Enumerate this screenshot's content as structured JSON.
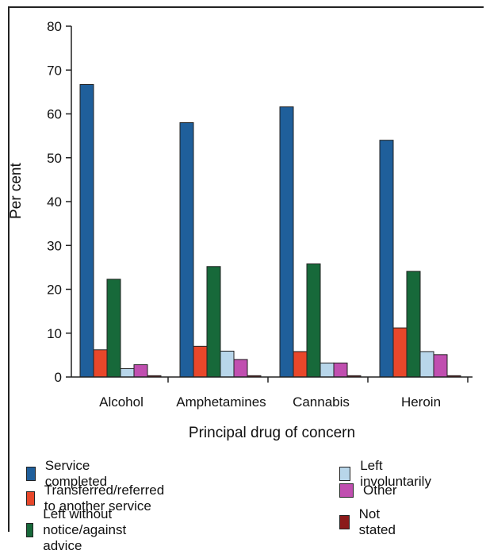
{
  "chart_data": {
    "type": "bar",
    "categories": [
      "Alcohol",
      "Amphetamines",
      "Cannabis",
      "Heroin"
    ],
    "series": [
      {
        "name": "Service completed",
        "color": "#1f5f9b",
        "values": [
          66.7,
          58.0,
          61.6,
          54.0
        ]
      },
      {
        "name": "Transferred/referred to another service",
        "color": "#e8472a",
        "values": [
          6.2,
          7.0,
          5.8,
          11.2
        ]
      },
      {
        "name": "Left without notice/against advice",
        "color": "#17693a",
        "values": [
          22.3,
          25.2,
          25.8,
          24.1
        ]
      },
      {
        "name": "Left involuntarily",
        "color": "#b8d6ea",
        "values": [
          1.9,
          5.9,
          3.2,
          5.8
        ]
      },
      {
        "name": "Other",
        "color": "#c04fb0",
        "values": [
          2.8,
          4.0,
          3.2,
          5.1
        ]
      },
      {
        "name": "Not stated",
        "color": "#8b1a1a",
        "values": [
          0.3,
          0.3,
          0.3,
          0.3
        ]
      }
    ],
    "title": "",
    "xlabel": "Principal drug of concern",
    "ylabel": "Per cent",
    "ylim": [
      0,
      80
    ],
    "yticks": [
      0,
      10,
      20,
      30,
      40,
      50,
      60,
      70,
      80
    ],
    "grid": false,
    "legend_placement": "bottom"
  }
}
